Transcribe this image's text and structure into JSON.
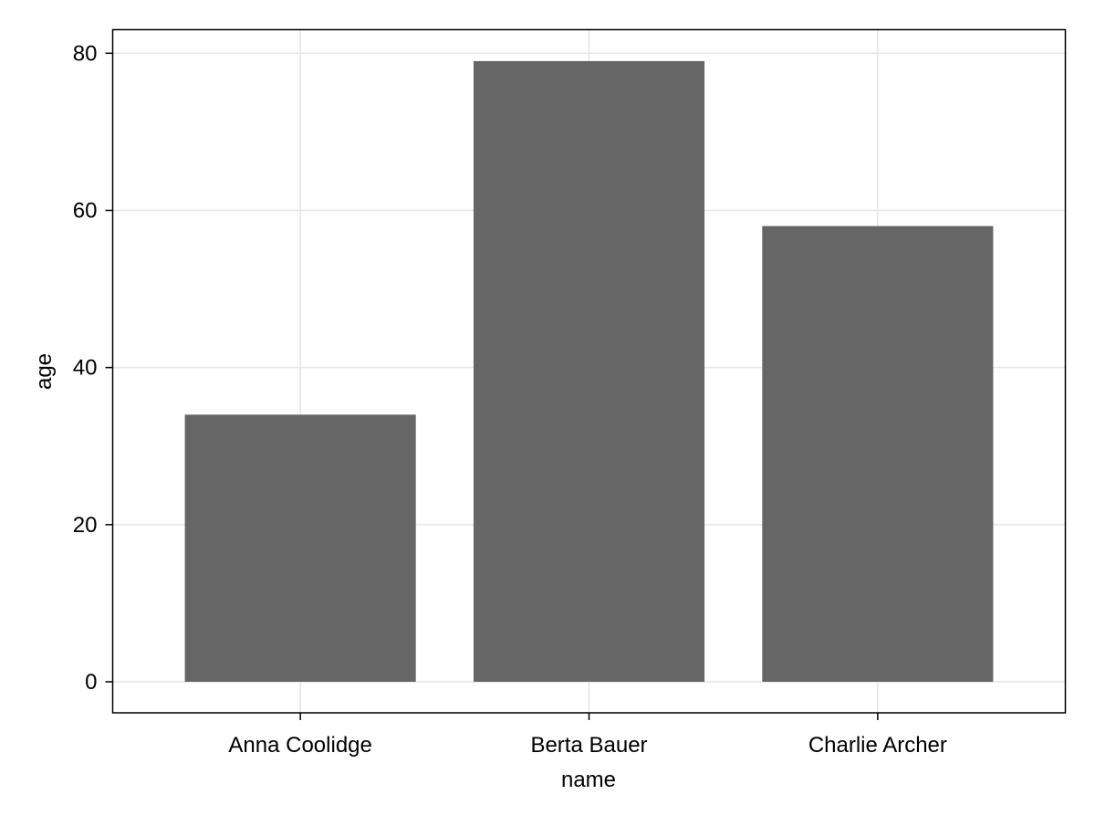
{
  "chart_data": {
    "type": "bar",
    "categories": [
      "Anna Coolidge",
      "Berta Bauer",
      "Charlie Archer"
    ],
    "values": [
      34,
      79,
      58
    ],
    "title": "",
    "xlabel": "name",
    "ylabel": "age",
    "ylim": [
      -3.95,
      83
    ],
    "yticks": [
      0,
      20,
      40,
      60,
      80
    ],
    "grid": true,
    "bar_color": "#666666",
    "grid_color": "#e6e6e6"
  }
}
